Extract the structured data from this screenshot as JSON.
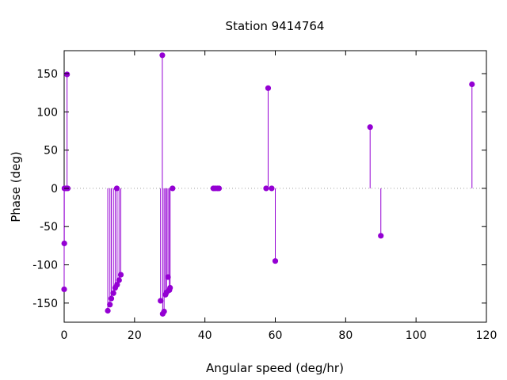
{
  "chart_data": {
    "type": "scatter",
    "title": "Station 9414764",
    "xlabel": "Angular speed (deg/hr)",
    "ylabel": "Phase (deg)",
    "xlim": [
      0,
      120
    ],
    "ylim": [
      -175,
      180
    ],
    "xticks": [
      0,
      20,
      40,
      60,
      80,
      100,
      120
    ],
    "yticks": [
      -150,
      -100,
      -50,
      0,
      50,
      100,
      150
    ],
    "xtick_labels": [
      "0",
      "20",
      "40",
      "60",
      "80",
      "100",
      120
    ],
    "ytick_labels": [
      "-150",
      "-100",
      "-50",
      "0",
      "50",
      "100",
      "150"
    ],
    "grid": false,
    "zero_line": "dotted",
    "style": "impulses with points",
    "series_color": "#9400d3",
    "points": [
      {
        "x": 0.0,
        "y": -132
      },
      {
        "x": 0.04,
        "y": -72
      },
      {
        "x": 0.08,
        "y": 0
      },
      {
        "x": 0.5,
        "y": 0
      },
      {
        "x": 0.82,
        "y": 149
      },
      {
        "x": 1.0,
        "y": 0
      },
      {
        "x": 12.4,
        "y": -160
      },
      {
        "x": 13.0,
        "y": -152
      },
      {
        "x": 13.4,
        "y": -144
      },
      {
        "x": 14.0,
        "y": -137
      },
      {
        "x": 14.5,
        "y": -130
      },
      {
        "x": 14.96,
        "y": 0
      },
      {
        "x": 15.04,
        "y": -126
      },
      {
        "x": 15.6,
        "y": -120
      },
      {
        "x": 16.1,
        "y": -113
      },
      {
        "x": 27.4,
        "y": -147
      },
      {
        "x": 27.9,
        "y": 174
      },
      {
        "x": 28.0,
        "y": -164
      },
      {
        "x": 28.4,
        "y": -161
      },
      {
        "x": 28.8,
        "y": -139
      },
      {
        "x": 29.1,
        "y": -136
      },
      {
        "x": 29.5,
        "y": -116
      },
      {
        "x": 29.9,
        "y": -133
      },
      {
        "x": 30.1,
        "y": -130
      },
      {
        "x": 30.8,
        "y": 0
      },
      {
        "x": 42.4,
        "y": 0
      },
      {
        "x": 42.9,
        "y": 0
      },
      {
        "x": 43.5,
        "y": 0
      },
      {
        "x": 44.0,
        "y": 0
      },
      {
        "x": 57.4,
        "y": 0
      },
      {
        "x": 57.97,
        "y": 131
      },
      {
        "x": 58.98,
        "y": 0
      },
      {
        "x": 60.0,
        "y": -95
      },
      {
        "x": 86.95,
        "y": 80
      },
      {
        "x": 90.0,
        "y": -62
      },
      {
        "x": 115.9,
        "y": 136
      }
    ]
  }
}
